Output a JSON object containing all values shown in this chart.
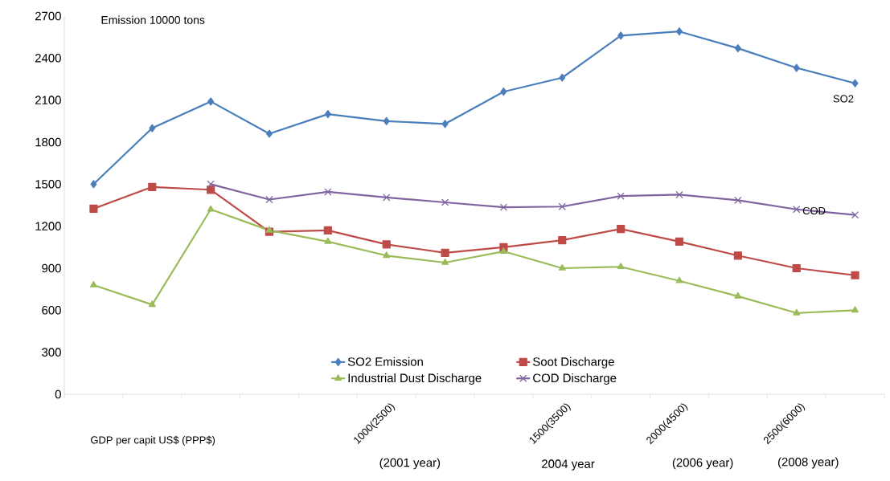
{
  "chart_data": {
    "type": "line",
    "ylabel": "Emission 10000 tons",
    "xlabel": "GDP per capit US$ (PPP$)",
    "categories": [
      null,
      null,
      null,
      null,
      null,
      "1000(2500)",
      null,
      null,
      "1500(3500)",
      null,
      "2000(4500)",
      null,
      "2500(6000)",
      null
    ],
    "series": [
      {
        "name": "SO2 Emission",
        "color": "#4a7ebb",
        "marker": "diamond",
        "values": [
          1500,
          1900,
          2090,
          1860,
          2000,
          1950,
          1930,
          2160,
          2260,
          2560,
          2590,
          2470,
          2330,
          2220
        ]
      },
      {
        "name": "Soot Discharge",
        "color": "#be4b48",
        "marker": "square",
        "values": [
          1325,
          1480,
          1460,
          1160,
          1170,
          1070,
          1010,
          1050,
          1100,
          1180,
          1090,
          990,
          900,
          850
        ]
      },
      {
        "name": "Industrial Dust Discharge",
        "color": "#9bbb59",
        "marker": "triangle",
        "values": [
          780,
          640,
          1320,
          1170,
          1090,
          990,
          940,
          1020,
          900,
          910,
          810,
          700,
          580,
          600
        ]
      },
      {
        "name": "COD Discharge",
        "color": "#8064a2",
        "marker": "cross",
        "values": [
          null,
          null,
          1500,
          1390,
          1445,
          1405,
          1370,
          1335,
          1340,
          1415,
          1425,
          1385,
          1320,
          1280
        ]
      }
    ],
    "ylim": [
      0,
      2700
    ],
    "yticks": [
      0,
      300,
      600,
      900,
      1200,
      1500,
      1800,
      2100,
      2400,
      2700
    ],
    "grid": false,
    "legend": "bottom",
    "annotations": [
      "(2001 year)",
      "2004 year",
      "(2006 year)",
      "(2008 year)",
      "SO2",
      "COD"
    ]
  }
}
